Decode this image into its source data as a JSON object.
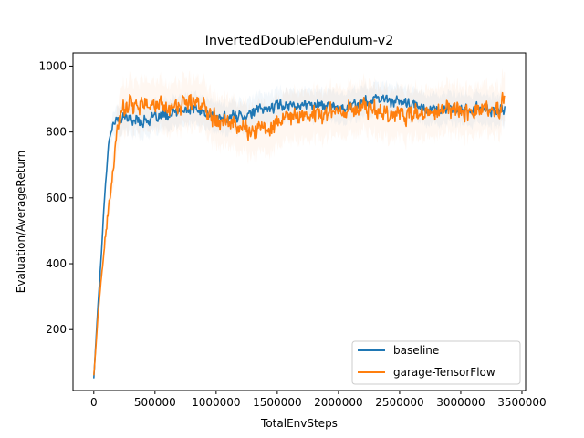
{
  "chart_data": {
    "type": "line",
    "title": "InvertedDoublePendulum-v2",
    "xlabel": "TotalEnvSteps",
    "ylabel": "Evaluation/AverageReturn",
    "xlim": [
      -170000,
      3530000
    ],
    "ylim": [
      15,
      1040
    ],
    "x_ticks": [
      0,
      500000,
      1000000,
      1500000,
      2000000,
      2500000,
      3000000,
      3500000
    ],
    "x_tick_labels": [
      "0",
      "500000",
      "1000000",
      "1500000",
      "2000000",
      "2500000",
      "3000000",
      "3500000"
    ],
    "y_ticks": [
      200,
      400,
      600,
      800,
      1000
    ],
    "y_tick_labels": [
      "200",
      "400",
      "600",
      "800",
      "1000"
    ],
    "grid": false,
    "legend_position": "bottom-right",
    "x_max": 3360000,
    "series": [
      {
        "name": "baseline",
        "color": "#1f77b4",
        "x": [
          0,
          30000,
          60000,
          90000,
          120000,
          150000,
          180000,
          210000,
          250000,
          300000,
          400000,
          500000,
          600000,
          700000,
          800000,
          900000,
          1000000,
          1100000,
          1200000,
          1300000,
          1400000,
          1500000,
          1600000,
          1700000,
          1800000,
          1900000,
          2000000,
          2100000,
          2200000,
          2300000,
          2400000,
          2500000,
          2600000,
          2700000,
          2800000,
          2900000,
          3000000,
          3100000,
          3200000,
          3300000,
          3360000
        ],
        "y": [
          52,
          250,
          420,
          620,
          760,
          820,
          830,
          840,
          845,
          840,
          835,
          840,
          850,
          860,
          870,
          860,
          840,
          845,
          850,
          860,
          870,
          880,
          885,
          880,
          885,
          880,
          875,
          880,
          890,
          895,
          900,
          890,
          880,
          875,
          870,
          870,
          865,
          870,
          870,
          860,
          870
        ],
        "noise": 22
      },
      {
        "name": "garage-TensorFlow",
        "color": "#ff7f0e",
        "x": [
          0,
          30000,
          60000,
          90000,
          120000,
          150000,
          180000,
          210000,
          250000,
          300000,
          400000,
          500000,
          600000,
          700000,
          800000,
          900000,
          1000000,
          1100000,
          1200000,
          1300000,
          1400000,
          1500000,
          1600000,
          1700000,
          1800000,
          1900000,
          2000000,
          2100000,
          2200000,
          2300000,
          2400000,
          2500000,
          2600000,
          2700000,
          2800000,
          2900000,
          3000000,
          3100000,
          3200000,
          3300000,
          3360000
        ],
        "y": [
          60,
          220,
          350,
          460,
          560,
          660,
          760,
          840,
          880,
          895,
          885,
          880,
          875,
          880,
          890,
          880,
          850,
          830,
          820,
          800,
          810,
          830,
          840,
          850,
          855,
          860,
          865,
          870,
          875,
          870,
          860,
          855,
          850,
          850,
          860,
          870,
          870,
          865,
          870,
          860,
          900
        ],
        "noise": 38
      }
    ]
  }
}
